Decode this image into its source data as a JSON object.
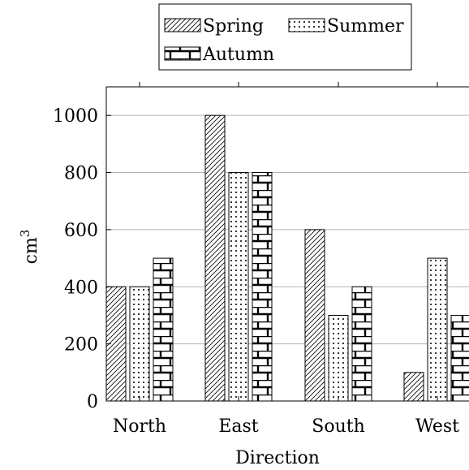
{
  "chart_data": {
    "type": "bar",
    "categories": [
      "North",
      "East",
      "South",
      "West"
    ],
    "series": [
      {
        "name": "Spring",
        "values": [
          400,
          1000,
          600,
          100
        ],
        "pattern": "north-east-lines"
      },
      {
        "name": "Summer",
        "values": [
          400,
          800,
          300,
          500
        ],
        "pattern": "dots"
      },
      {
        "name": "Autumn",
        "values": [
          500,
          800,
          400,
          300
        ],
        "pattern": "bricks"
      }
    ],
    "xlabel": "Direction",
    "ylabel": "cm",
    "ylabel_superscript": "3",
    "ylim": [
      0,
      1100
    ],
    "yticks": [
      0,
      200,
      400,
      600,
      800,
      1000
    ],
    "grid": "horizontal",
    "legend_position": "top-center",
    "colors": {
      "bar_fill": "#ffffff",
      "stroke": "#000000",
      "grid": "#b3b3b3"
    }
  }
}
